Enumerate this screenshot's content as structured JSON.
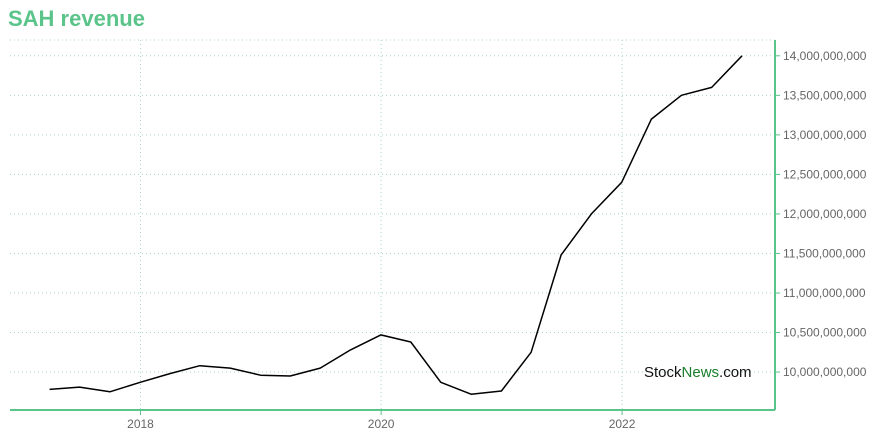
{
  "chart_data": {
    "type": "line",
    "title": "SAH revenue",
    "x": [
      "2017-03-31",
      "2017-06-30",
      "2017-09-30",
      "2017-12-31",
      "2018-03-31",
      "2018-06-30",
      "2018-09-30",
      "2018-12-31",
      "2019-03-31",
      "2019-06-30",
      "2019-09-30",
      "2019-12-31",
      "2020-03-31",
      "2020-06-30",
      "2020-09-30",
      "2020-12-31",
      "2021-03-31",
      "2021-06-30",
      "2021-09-30",
      "2021-12-31",
      "2022-03-31",
      "2022-06-30",
      "2022-09-30",
      "2022-12-31"
    ],
    "series": [
      {
        "values": [
          9780000000,
          9810000000,
          9750000000,
          9870000000,
          9980000000,
          10080000000,
          10050000000,
          9960000000,
          9950000000,
          10050000000,
          10280000000,
          10470000000,
          10380000000,
          9870000000,
          9720000000,
          9760000000,
          10250000000,
          11480000000,
          12000000000,
          12400000000,
          13200000000,
          13500000000,
          13600000000,
          14000000000
        ]
      }
    ],
    "x_ticks": [
      "2018",
      "2020",
      "2022"
    ],
    "y_ticks": [
      10000000000,
      10500000000,
      11000000000,
      11500000000,
      12000000000,
      12500000000,
      13000000000,
      13500000000,
      14000000000
    ],
    "y_tick_labels": [
      "10,000,000,000",
      "10,500,000,000",
      "11,000,000,000",
      "11,500,000,000",
      "12,000,000,000",
      "12,500,000,000",
      "13,000,000,000",
      "13,500,000,000",
      "14,000,000,000"
    ],
    "xlim": [
      "2016-12-01",
      "2023-04-10"
    ],
    "ylim": [
      9520000000,
      14200000000
    ],
    "grid": true,
    "y_axis_position": "right",
    "colors": {
      "title": "#5ac48a",
      "axis": "#5ac48a",
      "line": "#000000",
      "grid": "#a8d8c0"
    }
  },
  "watermark": {
    "part1": "Stock",
    "part2": "News",
    "part3": ".com"
  }
}
